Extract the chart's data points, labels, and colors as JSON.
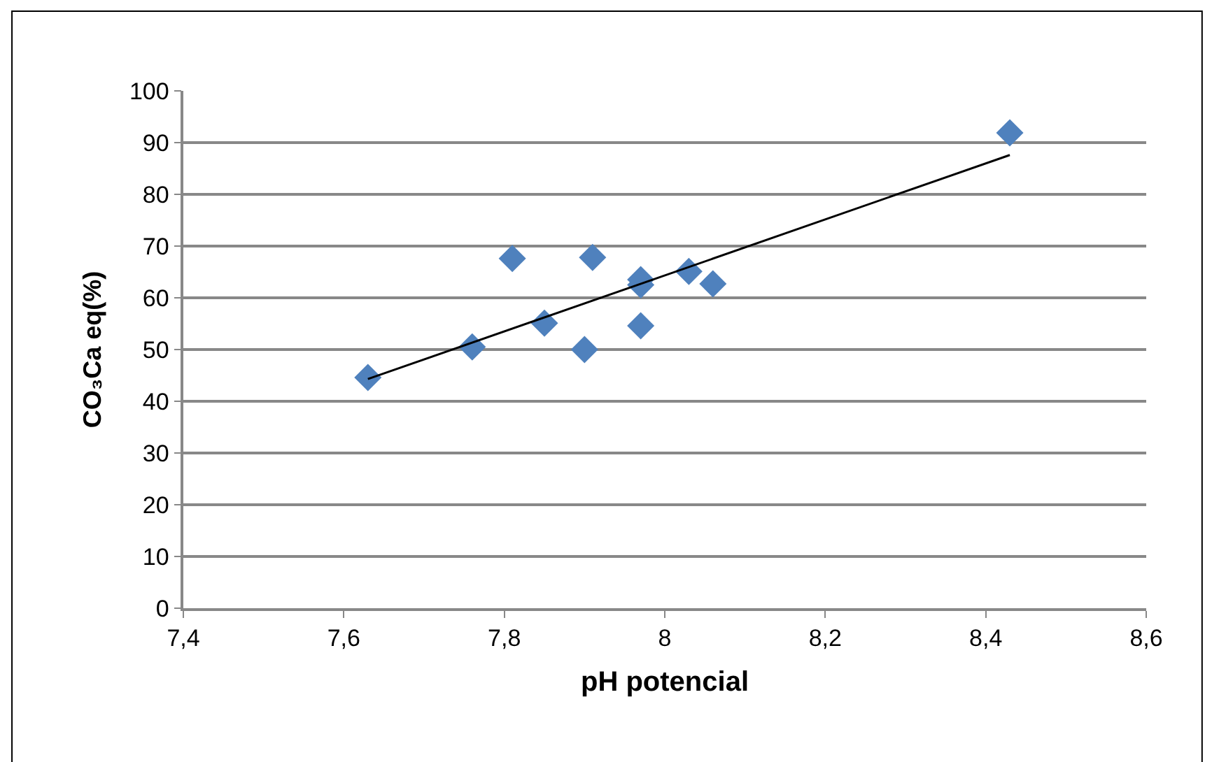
{
  "chart_data": {
    "type": "scatter",
    "xlabel": "pH potencial",
    "ylabel": "CO₃Ca eq(%)",
    "x": [
      7.63,
      7.76,
      7.81,
      7.85,
      7.9,
      7.91,
      7.97,
      7.97,
      7.97,
      8.03,
      8.06,
      8.43
    ],
    "series": [
      {
        "color": "#4f81bd",
        "marker": "diamond",
        "values": [
          44.6,
          50.5,
          67.6,
          55.1,
          50,
          67.8,
          63.5,
          62.5,
          54.6,
          65.1,
          62.7,
          91.9
        ]
      },
      {
        "type": "line",
        "color": "#000000",
        "marker": "none",
        "x": [
          7.63,
          8.43
        ],
        "values": [
          44.3,
          87.6
        ]
      }
    ],
    "xlim": [
      7.4,
      8.6
    ],
    "xticks": [
      {
        "value": 7.4,
        "label": "7,4"
      },
      {
        "value": 7.6,
        "label": "7,6"
      },
      {
        "value": 7.8,
        "label": "7,8"
      },
      {
        "value": 8,
        "label": "8"
      },
      {
        "value": 8.2,
        "label": "8,2"
      },
      {
        "value": 8.4,
        "label": "8,4"
      },
      {
        "value": 8.6,
        "label": "8,6"
      }
    ],
    "ylim": [
      0,
      100
    ],
    "yticks": [
      0,
      10,
      20,
      30,
      40,
      50,
      60,
      70,
      80,
      90,
      100
    ],
    "grid": "y",
    "legend": false
  }
}
